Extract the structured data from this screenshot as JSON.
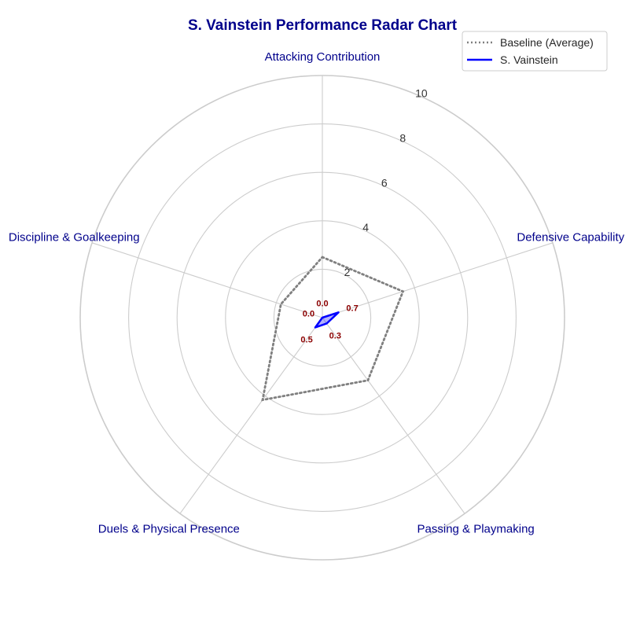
{
  "chart_data": {
    "type": "radar",
    "title": "S. Vainstein Performance Radar Chart",
    "categories": [
      "Attacking Contribution",
      "Defensive Capability",
      "Passing & Playmaking",
      "Duels & Physical Presence",
      "Discipline & Goalkeeping"
    ],
    "rlim": [
      0,
      10
    ],
    "r_ticks": [
      "2",
      "4",
      "6",
      "8",
      "10"
    ],
    "grid": true,
    "legend_position": "top-right",
    "series": [
      {
        "name": "Baseline (Average)",
        "values": [
          2.5,
          3.5,
          3.2,
          4.2,
          1.8
        ],
        "color": "#808080",
        "style": "dotted"
      },
      {
        "name": "S. Vainstein",
        "values": [
          0.0,
          0.7,
          0.3,
          0.5,
          0.0
        ],
        "labels": [
          "0.0",
          "0.7",
          "0.3",
          "0.5",
          "0.0"
        ],
        "color": "#0000ff",
        "fill": "#0000ff",
        "style": "solid"
      }
    ]
  }
}
